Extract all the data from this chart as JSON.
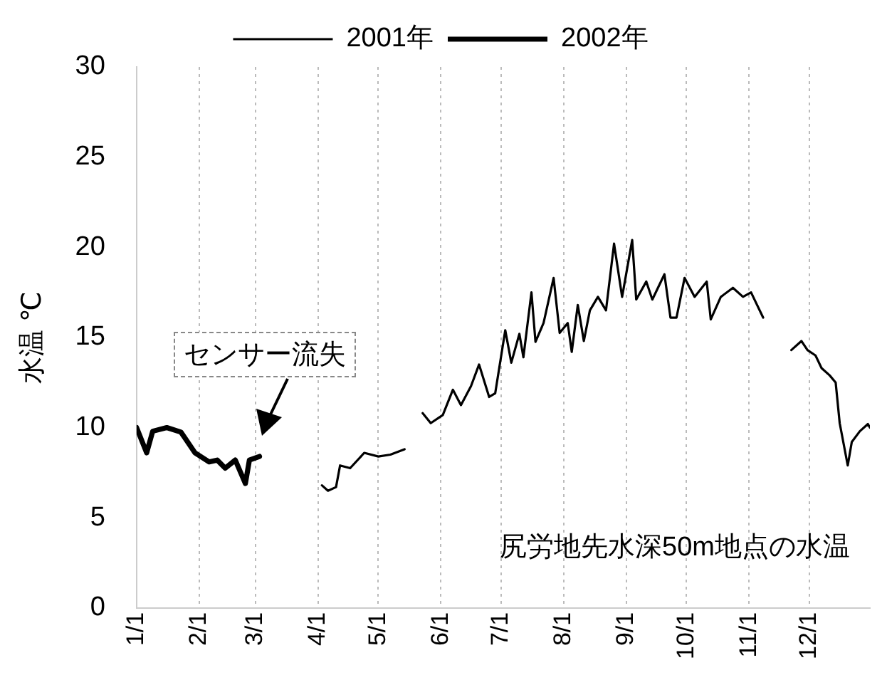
{
  "chart_data": {
    "type": "line",
    "ylabel": "水温 ℃",
    "legend": "top",
    "grid": "x",
    "marker": "none",
    "line_style": "solid",
    "xlim": [
      "--01-01",
      "--12-31"
    ],
    "xticks": [
      {
        "value": "--01-01",
        "label": "1/1"
      },
      {
        "value": "--02-01",
        "label": "2/1"
      },
      {
        "value": "--03-01",
        "label": "3/1"
      },
      {
        "value": "--04-01",
        "label": "4/1"
      },
      {
        "value": "--05-01",
        "label": "5/1"
      },
      {
        "value": "--06-01",
        "label": "6/1"
      },
      {
        "value": "--07-01",
        "label": "7/1"
      },
      {
        "value": "--08-01",
        "label": "8/1"
      },
      {
        "value": "--09-01",
        "label": "9/1"
      },
      {
        "value": "--10-01",
        "label": "10/1"
      },
      {
        "value": "--11-01",
        "label": "11/1"
      },
      {
        "value": "--12-01",
        "label": "12/1"
      }
    ],
    "ylim": [
      0,
      30
    ],
    "yticks": [
      0,
      5,
      10,
      15,
      20,
      25,
      30
    ],
    "series": [
      {
        "name": "2001年",
        "color": "#000000",
        "x": [
          "--04-03",
          "--04-06",
          "--04-10",
          "--04-12",
          "--04-17",
          "--04-24",
          "--05-01",
          "--05-07",
          "--05-14",
          "--05-18",
          "--05-23",
          "--05-27",
          "--06-02",
          "--06-07",
          "--06-11",
          "--06-16",
          "--06-20",
          "--06-25",
          "--06-28",
          "--07-03",
          "--07-06",
          "--07-10",
          "--07-12",
          "--07-16",
          "--07-18",
          "--07-22",
          "--07-27",
          "--07-30",
          "--08-03",
          "--08-05",
          "--08-08",
          "--08-11",
          "--08-14",
          "--08-18",
          "--08-22",
          "--08-26",
          "--08-30",
          "--09-04",
          "--09-06",
          "--09-11",
          "--09-14",
          "--09-20",
          "--09-23",
          "--09-26",
          "--09-30",
          "--10-05",
          "--10-11",
          "--10-13",
          "--10-18",
          "--10-24",
          "--10-29",
          "--11-02",
          "--11-05",
          "--11-08",
          "--11-15",
          "--11-22",
          "--11-27",
          "--11-30",
          "--12-04",
          "--12-07",
          "--12-11",
          "--12-14",
          "--12-16",
          "--12-20",
          "--12-22",
          "--12-26",
          "--12-30",
          "--12-31"
        ],
        "values": [
          6.8,
          6.5,
          6.7,
          7.9,
          7.75,
          8.6,
          8.4,
          8.5,
          8.8,
          null,
          10.8,
          10.25,
          10.7,
          12.1,
          11.25,
          12.3,
          13.5,
          11.7,
          11.9,
          15.4,
          13.6,
          15.2,
          13.9,
          17.5,
          14.75,
          15.8,
          18.3,
          15.25,
          15.8,
          14.2,
          16.8,
          14.8,
          16.5,
          17.25,
          16.5,
          20.2,
          17.25,
          20.4,
          17.1,
          18.1,
          17.1,
          18.5,
          16.1,
          16.1,
          18.3,
          17.25,
          18.1,
          16,
          17.25,
          17.75,
          17.25,
          17.5,
          16.8,
          16.1,
          null,
          14.3,
          14.8,
          14.3,
          14,
          13.3,
          12.9,
          12.5,
          10.25,
          7.9,
          9.2,
          9.8,
          10.2,
          10
        ]
      },
      {
        "name": "2002年",
        "color": "#000000",
        "x": [
          "--01-01",
          "--01-06",
          "--01-09",
          "--01-16",
          "--01-23",
          "--01-30",
          "--02-06",
          "--02-10",
          "--02-14",
          "--02-19",
          "--02-24",
          "--02-26",
          "--03-03"
        ],
        "values": [
          10,
          8.6,
          9.8,
          10,
          9.75,
          8.6,
          8.1,
          8.2,
          7.75,
          8.2,
          6.9,
          8.2,
          8.4
        ]
      }
    ],
    "annotations": [
      "センサー流失",
      "尻労地先水深50m地点の水温"
    ]
  }
}
